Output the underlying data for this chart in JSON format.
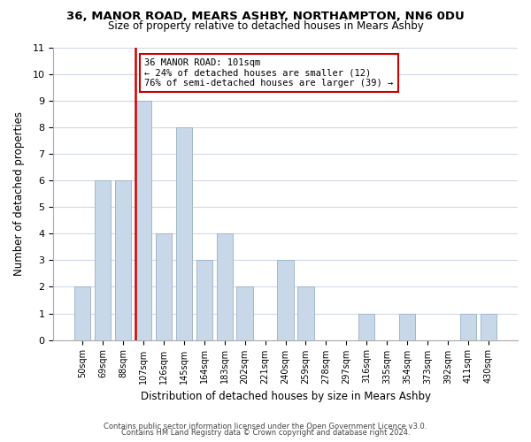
{
  "title1": "36, MANOR ROAD, MEARS ASHBY, NORTHAMPTON, NN6 0DU",
  "title2": "Size of property relative to detached houses in Mears Ashby",
  "xlabel": "Distribution of detached houses by size in Mears Ashby",
  "ylabel": "Number of detached properties",
  "bar_color": "#c8d8e8",
  "bar_edgecolor": "#a0b8cc",
  "grid_color": "#d0d8e8",
  "bin_labels": [
    "50sqm",
    "69sqm",
    "88sqm",
    "107sqm",
    "126sqm",
    "145sqm",
    "164sqm",
    "183sqm",
    "202sqm",
    "221sqm",
    "240sqm",
    "259sqm",
    "278sqm",
    "297sqm",
    "316sqm",
    "335sqm",
    "354sqm",
    "373sqm",
    "392sqm",
    "411sqm",
    "430sqm"
  ],
  "counts": [
    2,
    6,
    6,
    9,
    4,
    8,
    3,
    4,
    2,
    0,
    3,
    2,
    0,
    0,
    1,
    0,
    1,
    0,
    0,
    1,
    1
  ],
  "redline_index": 3,
  "annotation_title": "36 MANOR ROAD: 101sqm",
  "annotation_line1": "← 24% of detached houses are smaller (12)",
  "annotation_line2": "76% of semi-detached houses are larger (39) →",
  "ylim": [
    0,
    11
  ],
  "yticks": [
    0,
    1,
    2,
    3,
    4,
    5,
    6,
    7,
    8,
    9,
    10,
    11
  ],
  "footer1": "Contains HM Land Registry data © Crown copyright and database right 2024.",
  "footer2": "Contains public sector information licensed under the Open Government Licence v3.0.",
  "bg_color": "#ffffff",
  "annotation_box_color": "#ffffff",
  "annotation_box_edgecolor": "#cc0000"
}
